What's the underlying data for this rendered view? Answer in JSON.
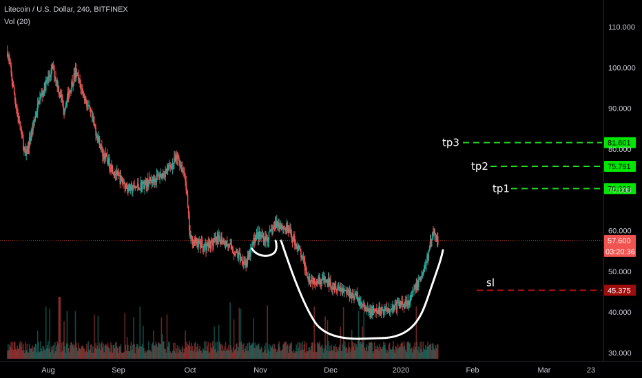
{
  "header": {
    "symbol_line": "Litecoin / U.S. Dollar, 240, BITFINEX",
    "volume_label": "Vol (20)"
  },
  "colors": {
    "background": "#000000",
    "up_candle": "#26a69a",
    "down_candle": "#ef5350",
    "target_line": "#22dd22",
    "target_tag": "#00e600",
    "stop_line": "#b31212",
    "stop_tag": "#9e0d0d",
    "price_tag": "#f05350",
    "drawing": "#ffffff"
  },
  "chart_data": {
    "type": "candlestick",
    "series_name": "Litecoin / U.S. Dollar, 240, BITFINEX",
    "ylim": [
      29.0,
      116.0
    ],
    "y_ticks": [
      "110.000",
      "100.000",
      "90.000",
      "80.000",
      "70.000",
      "60.000",
      "50.000",
      "40.000",
      "30.000"
    ],
    "y_tick_values": [
      110,
      100,
      90,
      80,
      70,
      60,
      50,
      40,
      30
    ],
    "x_ticks": [
      "Aug",
      "Sep",
      "Oct",
      "Nov",
      "Dec",
      "2020",
      "Feb",
      "Mar",
      "23"
    ],
    "x_tick_dates": [
      "2019-08-01",
      "2019-09-01",
      "2019-10-01",
      "2019-11-01",
      "2019-12-01",
      "2020-01-01",
      "2020-02-01",
      "2020-03-01",
      "2020-03-23"
    ],
    "x_range": [
      "2019-07-14",
      "2020-03-31"
    ],
    "price_path": [
      {
        "date": "2019-07-14",
        "price": 104
      },
      {
        "date": "2019-07-18",
        "price": 90
      },
      {
        "date": "2019-07-22",
        "price": 78
      },
      {
        "date": "2019-07-28",
        "price": 92
      },
      {
        "date": "2019-08-03",
        "price": 100
      },
      {
        "date": "2019-08-08",
        "price": 90
      },
      {
        "date": "2019-08-13",
        "price": 99
      },
      {
        "date": "2019-08-20",
        "price": 88
      },
      {
        "date": "2019-08-25",
        "price": 79
      },
      {
        "date": "2019-09-01",
        "price": 73
      },
      {
        "date": "2019-09-06",
        "price": 70
      },
      {
        "date": "2019-09-14",
        "price": 72
      },
      {
        "date": "2019-09-20",
        "price": 74
      },
      {
        "date": "2019-09-26",
        "price": 78
      },
      {
        "date": "2019-09-29",
        "price": 73
      },
      {
        "date": "2019-10-01",
        "price": 58
      },
      {
        "date": "2019-10-07",
        "price": 56
      },
      {
        "date": "2019-10-15",
        "price": 58
      },
      {
        "date": "2019-10-22",
        "price": 54
      },
      {
        "date": "2019-10-26",
        "price": 52
      },
      {
        "date": "2019-10-30",
        "price": 59
      },
      {
        "date": "2019-11-04",
        "price": 58
      },
      {
        "date": "2019-11-08",
        "price": 62
      },
      {
        "date": "2019-11-13",
        "price": 60
      },
      {
        "date": "2019-11-17",
        "price": 56
      },
      {
        "date": "2019-11-22",
        "price": 48
      },
      {
        "date": "2019-11-27",
        "price": 48
      },
      {
        "date": "2019-12-05",
        "price": 46
      },
      {
        "date": "2019-12-12",
        "price": 44
      },
      {
        "date": "2019-12-17",
        "price": 40
      },
      {
        "date": "2019-12-21",
        "price": 40
      },
      {
        "date": "2019-12-27",
        "price": 41
      },
      {
        "date": "2020-01-01",
        "price": 42
      },
      {
        "date": "2020-01-05",
        "price": 43
      },
      {
        "date": "2020-01-09",
        "price": 48
      },
      {
        "date": "2020-01-12",
        "price": 52
      },
      {
        "date": "2020-01-15",
        "price": 60
      },
      {
        "date": "2020-01-17",
        "price": 57.6
      }
    ],
    "volume_max_date": "2019-08-06",
    "levels": [
      {
        "label": "tp3",
        "value": 81.601,
        "tag": "81.601",
        "style": "dashed-green"
      },
      {
        "label": "tp2",
        "value": 75.791,
        "tag": "75.791",
        "style": "dashed-green"
      },
      {
        "label": "tp1",
        "value": 70.323,
        "tag": "70.323",
        "style": "dashed-green"
      },
      {
        "label": "sl",
        "value": 45.375,
        "tag": "45.375",
        "style": "dashed-red"
      }
    ],
    "last_price": {
      "value": 57.6,
      "tag": "57.600",
      "countdown": "03:20:36"
    },
    "drawings": [
      "small-cup-curve",
      "large-cup-curve"
    ]
  }
}
